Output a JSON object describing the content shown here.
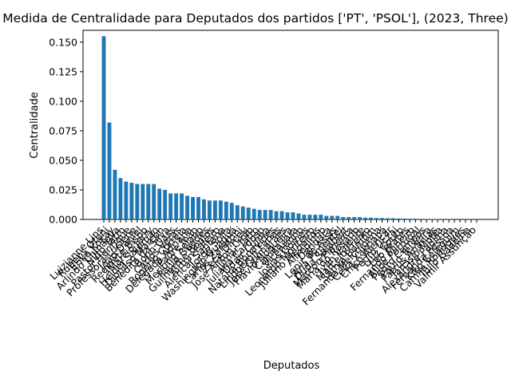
{
  "chart_data": {
    "type": "bar",
    "title": "Medida de Centralidade para Deputados dos partidos ['PT', 'PSOL'],  (2023, Three)",
    "xlabel": "Deputados",
    "ylabel": "Centralidade",
    "ylim": [
      0,
      0.16
    ],
    "yticks": [
      "0.000",
      "0.025",
      "0.050",
      "0.075",
      "0.100",
      "0.125",
      "0.150"
    ],
    "grid": false,
    "bar_color": "#1f77b4",
    "categories": [
      "Luizianne Lins",
      "Rubens Otoni",
      "Erika Kokay",
      "Arlindo Chinaglia",
      "Nilto Tatto",
      "Pastor Henrique",
      "Professora Luciene",
      "João Daniel",
      "Reginete Bispo",
      "Márcio Jerry",
      "Helder Salomão",
      "Dionilso Marcon",
      "Benedita da Silva",
      "Bohn Gass",
      "Carlos Veras",
      "Rogério Correia",
      "Delegada Adriana",
      "Padre João",
      "Merlong Solano",
      "Paulo Guedes",
      "Guilherme Boulos",
      "Airton Faleiro",
      "Alencar Santana",
      "Jorge Solla",
      "Washington Quaquá",
      "Carlos Zarattini",
      "Zeca Dirceu",
      "José Airton Cirilo",
      "Jilmar Tatto",
      "Juliana Cardoso",
      "Odair Cunha",
      "Natália Bonavides",
      "Lindbergh Farias",
      "José Guimarães",
      "Flávio Nogueira",
      "Camila Jara",
      "Vicentinho",
      "Josias Gomes",
      "Leonardo Monteiro",
      "Juliano Medeiros",
      "Alfredinho",
      "Dandara",
      "Lenir de Assis",
      "Ana Pimentel",
      "Duda Salabert",
      "Marcon Pimenta",
      "Maria do Rosário",
      "Ivan Valente",
      "Marcelo Freixo",
      "Sâmia Bomfim",
      "Fernanda Melchionna",
      "Célia Xakriabá",
      "Chico Alencar",
      "Pedro Uczai",
      "Luiz Couto",
      "Leo Prates",
      "Fernando Mineiro",
      "Alice Portugal",
      "Pedro Campos",
      "Paulo Teixeira",
      "Patrus Ananias",
      "Tarcísio Motta",
      "Alexandre Padilha",
      "Fernanda Pessoa",
      "Kiko Celeguim",
      "Camila Rodrigues",
      "Túlio Gadêlha",
      "Valmir Assunção"
    ],
    "values": [
      0.155,
      0.082,
      0.042,
      0.035,
      0.032,
      0.031,
      0.03,
      0.03,
      0.03,
      0.03,
      0.026,
      0.025,
      0.022,
      0.022,
      0.022,
      0.02,
      0.019,
      0.019,
      0.017,
      0.016,
      0.016,
      0.016,
      0.015,
      0.014,
      0.012,
      0.011,
      0.01,
      0.009,
      0.008,
      0.008,
      0.008,
      0.007,
      0.007,
      0.006,
      0.006,
      0.005,
      0.004,
      0.004,
      0.004,
      0.004,
      0.003,
      0.003,
      0.003,
      0.002,
      0.002,
      0.002,
      0.002,
      0.0015,
      0.0015,
      0.0012,
      0.0012,
      0.001,
      0.001,
      0.0008,
      0.0008,
      0.0006,
      0.0006,
      0.0005,
      0.0004,
      0.0003,
      0.0003,
      0.0002,
      0.0002,
      0.0001,
      0.0001,
      0.0001,
      0.0001,
      0.0001
    ]
  }
}
